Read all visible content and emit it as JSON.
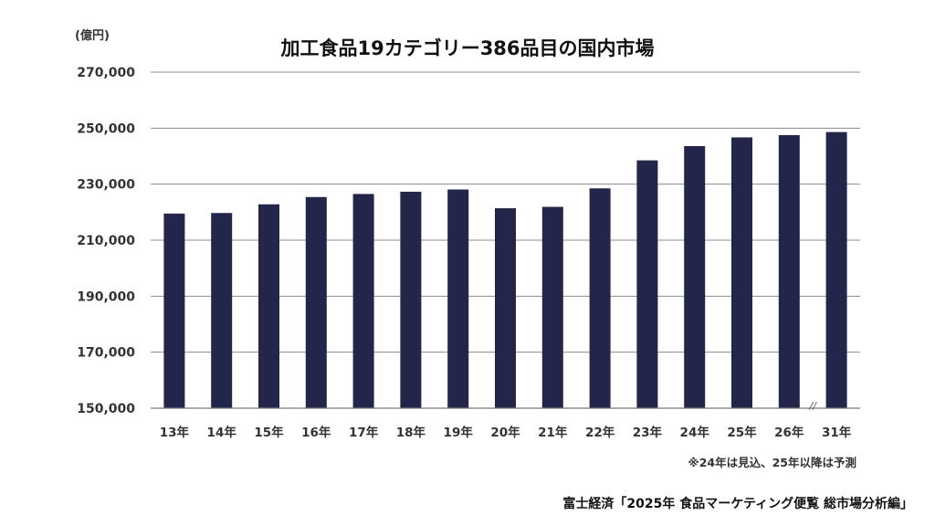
{
  "chart_data": {
    "type": "bar",
    "title": "加工食品19カテゴリー386品目の国内市場",
    "unit_label": "(億円)",
    "categories": [
      "13年",
      "14年",
      "15年",
      "16年",
      "17年",
      "18年",
      "19年",
      "20年",
      "21年",
      "22年",
      "23年",
      "24年",
      "25年",
      "26年",
      "31年"
    ],
    "values": [
      219500,
      219700,
      222800,
      225400,
      226500,
      227300,
      228100,
      221400,
      221900,
      228500,
      238500,
      243600,
      246700,
      247500,
      248600
    ],
    "ylim": [
      150000,
      270000
    ],
    "yticks": [
      150000,
      170000,
      190000,
      210000,
      230000,
      250000,
      270000
    ],
    "ytick_labels": [
      "150,000",
      "170,000",
      "190,000",
      "210,000",
      "230,000",
      "250,000",
      "270,000"
    ],
    "axis_break_mark": "//",
    "note": "※24年は見込、25年以降は予測",
    "grid": true,
    "legend": "none",
    "bar_color": "#23264a"
  },
  "source": "富士経済「2025年 食品マーケティング便覧 総市場分析編」"
}
